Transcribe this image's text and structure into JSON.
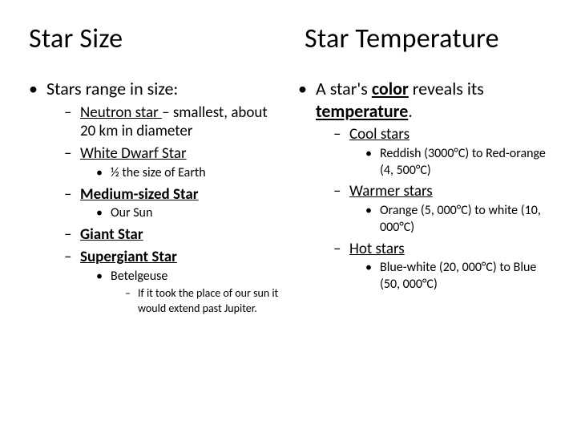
{
  "left": {
    "heading": "Star Size",
    "main": "Stars range in size:",
    "items": {
      "neutron_pre": "Neutron star ",
      "neutron_post": "– smallest, about 20 km in diameter",
      "whitedwarf": "White Dwarf Star",
      "whitedwarf_sub": "½ the size of Earth",
      "medium": "Medium-sized Star",
      "medium_sub": "Our Sun",
      "giant": "Giant Star",
      "supergiant": "Supergiant Star",
      "supergiant_sub": "Betelgeuse",
      "supergiant_sub2": "If it took the place of our sun it would extend past Jupiter."
    }
  },
  "right": {
    "heading": "Star Temperature",
    "main_pre": "A star's ",
    "main_color": "color",
    "main_mid": " reveals its ",
    "main_temp": "temperature",
    "main_post": ".",
    "items": {
      "cool": "Cool stars",
      "cool_sub": "Reddish (3000°C) to Red-orange (4, 500°C)",
      "warmer": "Warmer stars",
      "warmer_sub": "Orange (5, 000°C) to white (10, 000°C)",
      "hot": "Hot stars",
      "hot_sub": "Blue-white (20, 000°C) to Blue (50, 000°C)"
    }
  }
}
